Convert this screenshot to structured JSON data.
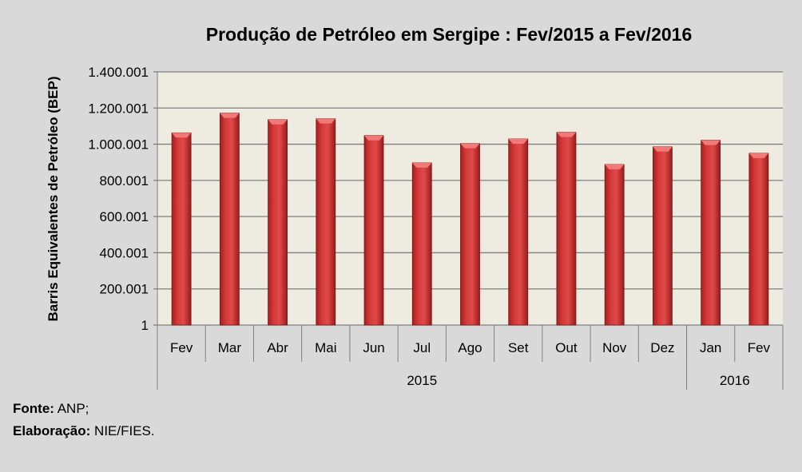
{
  "chart_data": {
    "type": "bar",
    "title": "Produção de Petróleo em Sergipe : Fev/2015 a Fev/2016",
    "xlabel": "",
    "ylabel": "Barris Equivalentes de Petróleo (BEP)",
    "ylim": [
      1,
      1400001
    ],
    "yticks": [
      1,
      200001,
      400001,
      600001,
      800001,
      1000001,
      1200001,
      1400001
    ],
    "ytick_labels": [
      "1",
      "200.001",
      "400.001",
      "600.001",
      "800.001",
      "1.000.001",
      "1.200.001",
      "1.400.001"
    ],
    "categories": [
      "Fev",
      "Mar",
      "Abr",
      "Mai",
      "Jun",
      "Jul",
      "Ago",
      "Set",
      "Out",
      "Nov",
      "Dez",
      "Jan",
      "Fev"
    ],
    "groups": [
      {
        "label": "2015",
        "count": 11
      },
      {
        "label": "2016",
        "count": 2
      }
    ],
    "values": [
      1063000,
      1172000,
      1136000,
      1141000,
      1048000,
      897000,
      1004000,
      1029000,
      1066000,
      888000,
      986000,
      1022000,
      950000
    ],
    "grid": true,
    "bar_color": "#d43a3a",
    "plot_bg": "#eeece1"
  },
  "footer": {
    "source_label": "Fonte:",
    "source_value": " ANP;",
    "elab_label": "Elaboração:",
    "elab_value": " NIE/FIES."
  }
}
